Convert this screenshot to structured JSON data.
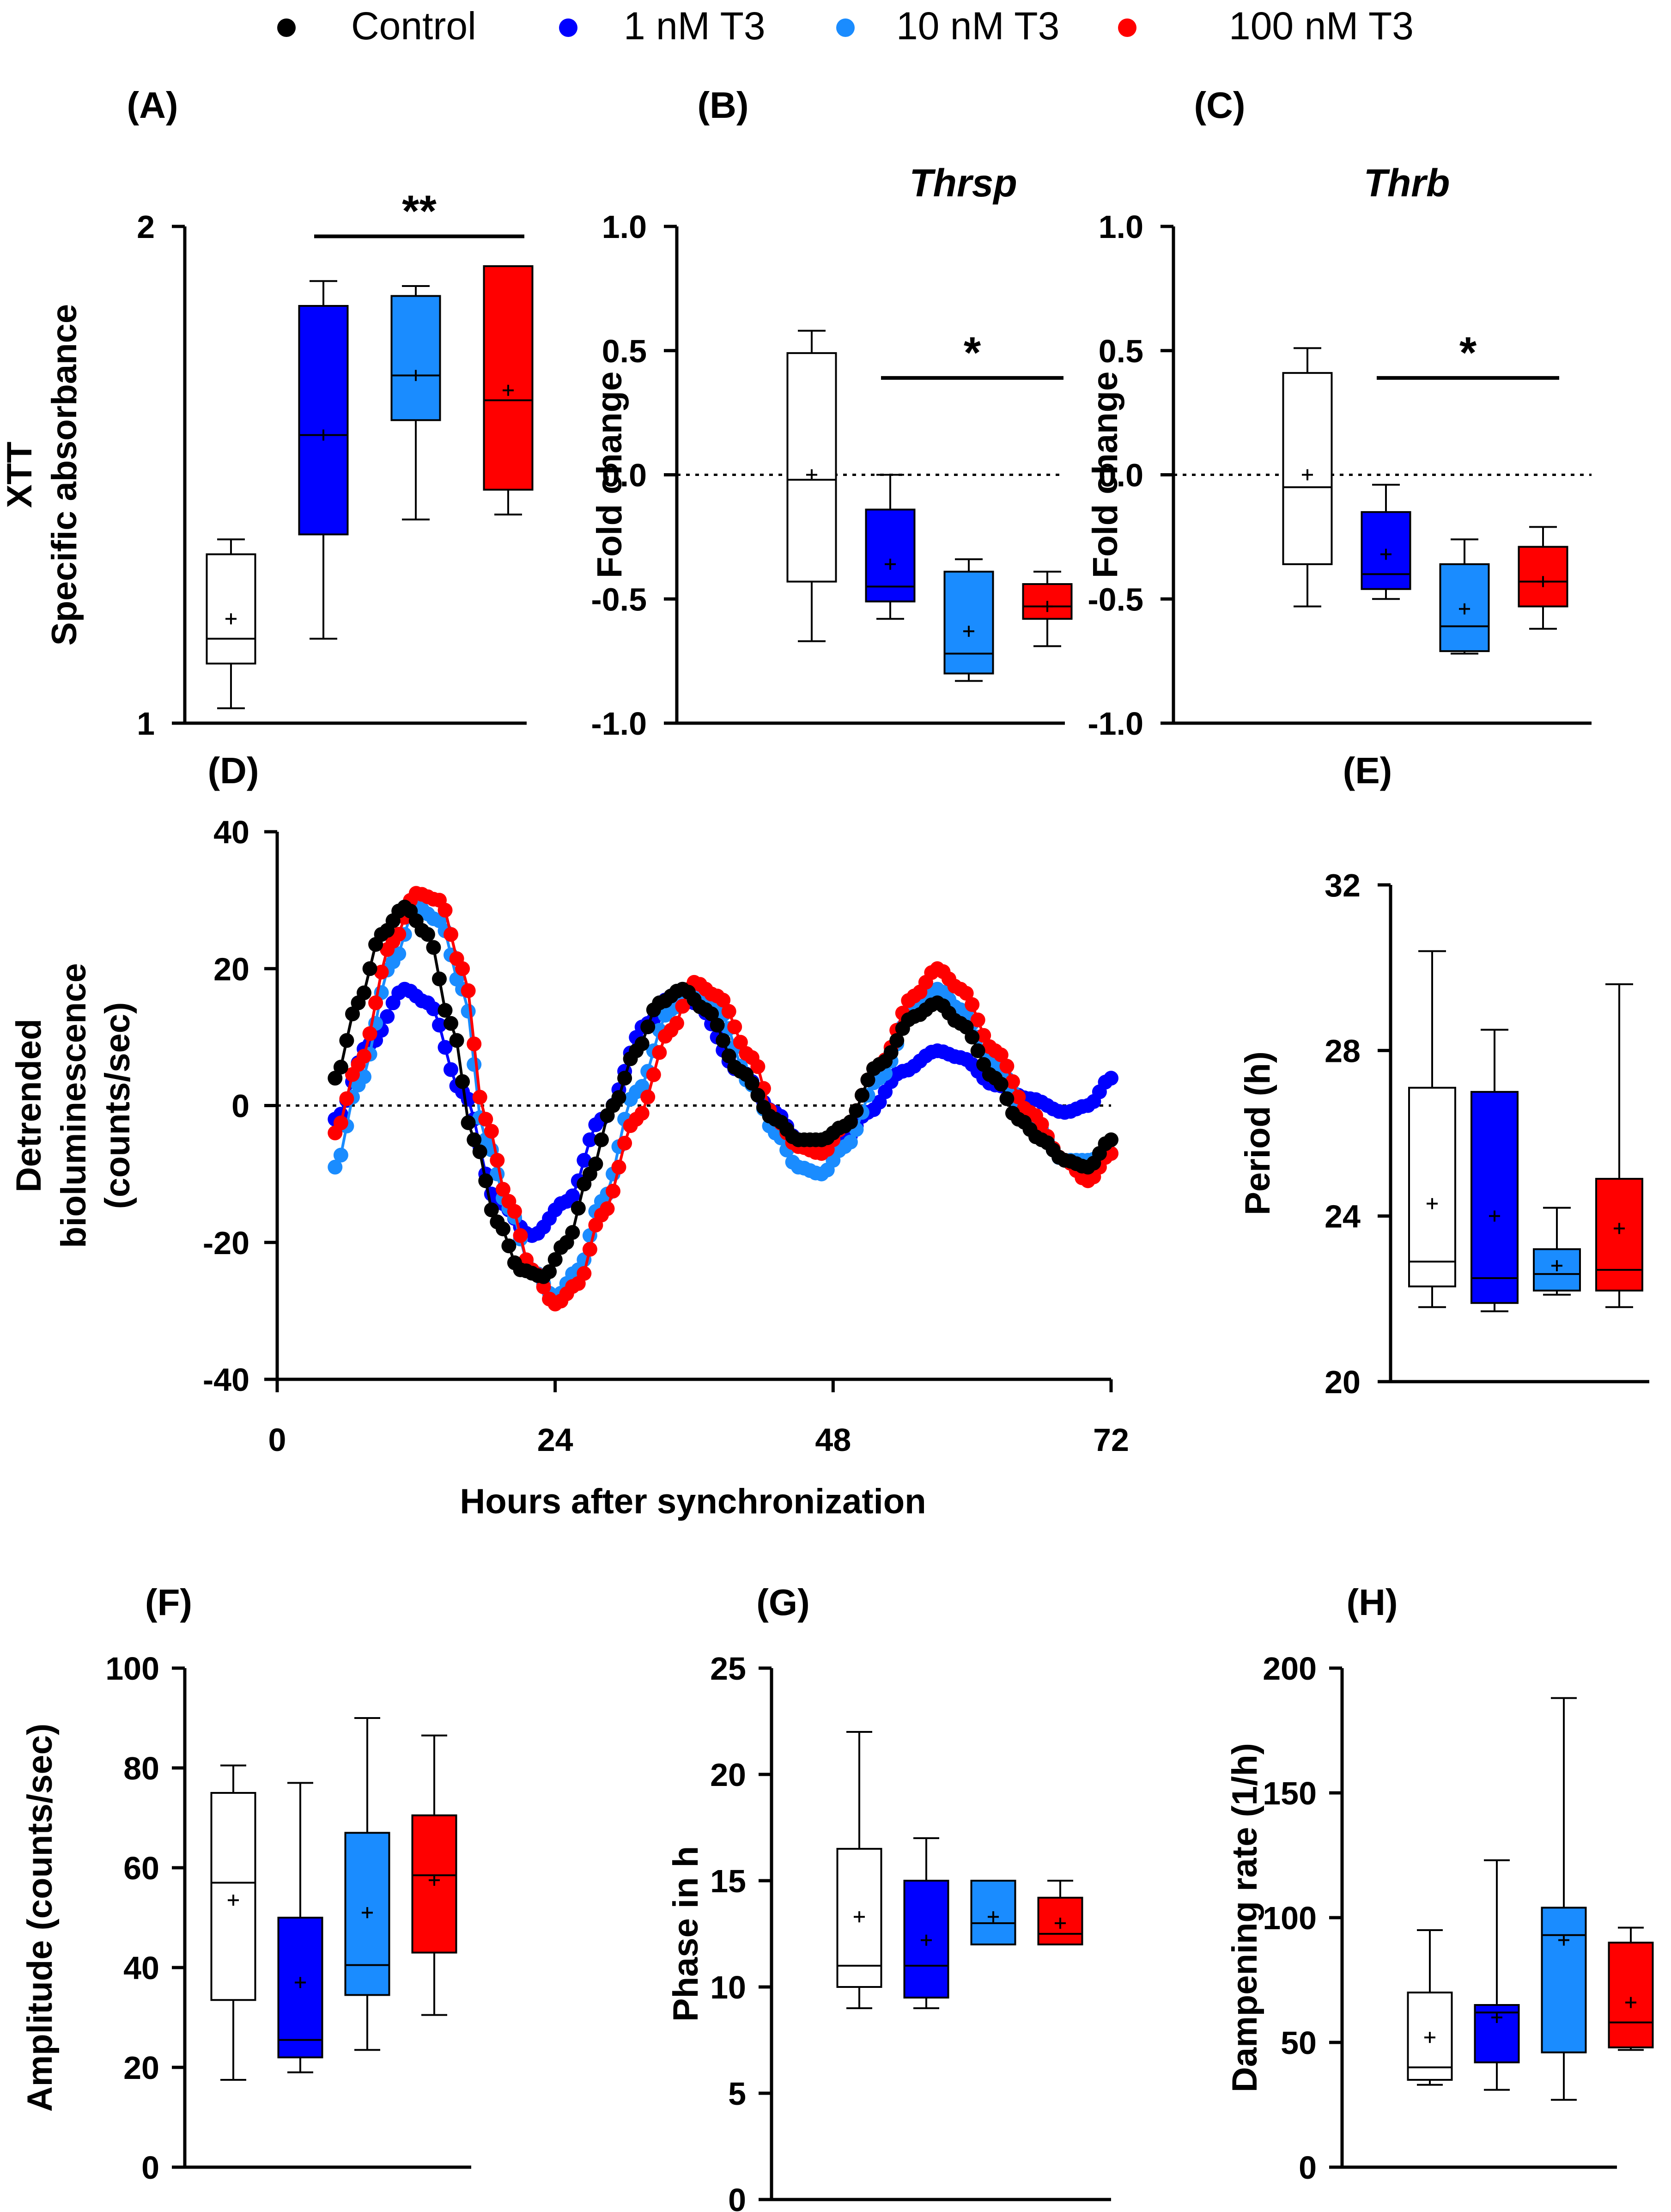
{
  "legend": {
    "items": [
      {
        "label": "Control",
        "color": "#000000"
      },
      {
        "label": "1 nM T3",
        "color": "#0000ff"
      },
      {
        "label": "10 nM T3",
        "color": "#1a8cff"
      },
      {
        "label": "100 nM T3",
        "color": "#ff0000"
      }
    ]
  },
  "chart_data": [
    {
      "id": "A",
      "panel_label": "(A)",
      "type": "box",
      "title": "",
      "ylabel": [
        "XTT",
        "Specific absorbance"
      ],
      "ylim": [
        1,
        2
      ],
      "yticks": [
        1,
        2
      ],
      "ytick_labels": [
        "1",
        "2"
      ],
      "groups": [
        "Control",
        "1 nM T3",
        "10 nM T3",
        "100 nM T3"
      ],
      "boxes": [
        {
          "min": 1.03,
          "q1": 1.12,
          "median": 1.17,
          "q3": 1.34,
          "max": 1.37,
          "mean": 1.21
        },
        {
          "min": 1.17,
          "q1": 1.38,
          "median": 1.58,
          "q3": 1.84,
          "max": 1.89,
          "mean": 1.58
        },
        {
          "min": 1.41,
          "q1": 1.61,
          "median": 1.7,
          "q3": 1.86,
          "max": 1.88,
          "mean": 1.7
        },
        {
          "min": 1.42,
          "q1": 1.47,
          "median": 1.65,
          "q3": 1.92,
          "max": 1.92,
          "mean": 1.67
        }
      ],
      "significance": {
        "label": "**",
        "from": 1,
        "to": 3,
        "y": 1.98
      }
    },
    {
      "id": "B",
      "panel_label": "(B)",
      "type": "box",
      "title": "Thrsp",
      "ylabel": [
        "Fold change"
      ],
      "ylim": [
        -1.0,
        1.0
      ],
      "yticks": [
        -1.0,
        -0.5,
        0.0,
        0.5,
        1.0
      ],
      "ytick_labels": [
        "-1.0",
        "-0.5",
        "0.0",
        "0.5",
        "1.0"
      ],
      "zero_line": true,
      "groups": [
        "Control",
        "1 nM T3",
        "10 nM T3",
        "100 nM T3"
      ],
      "boxes": [
        {
          "min": -0.67,
          "q1": -0.43,
          "median": -0.02,
          "q3": 0.49,
          "max": 0.58,
          "mean": 0.0
        },
        {
          "min": -0.58,
          "q1": -0.51,
          "median": -0.45,
          "q3": -0.14,
          "max": 0.0,
          "mean": -0.36
        },
        {
          "min": -0.83,
          "q1": -0.8,
          "median": -0.72,
          "q3": -0.39,
          "max": -0.34,
          "mean": -0.63
        },
        {
          "min": -0.69,
          "q1": -0.58,
          "median": -0.53,
          "q3": -0.44,
          "max": -0.39,
          "mean": -0.53
        }
      ],
      "significance": {
        "label": "*",
        "from": 1,
        "to": 3,
        "y": 0.39
      }
    },
    {
      "id": "C",
      "panel_label": "(C)",
      "type": "box",
      "title": "Thrb",
      "ylabel": [
        "Fold change"
      ],
      "ylim": [
        -1.0,
        1.0
      ],
      "yticks": [
        -1.0,
        -0.5,
        0.0,
        0.5,
        1.0
      ],
      "ytick_labels": [
        "-1.0",
        "-0.5",
        "0.0",
        "0.5",
        "1.0"
      ],
      "zero_line": true,
      "groups": [
        "Control",
        "1 nM T3",
        "10 nM T3",
        "100 nM T3"
      ],
      "boxes": [
        {
          "min": -0.53,
          "q1": -0.36,
          "median": -0.05,
          "q3": 0.41,
          "max": 0.51,
          "mean": 0.0
        },
        {
          "min": -0.5,
          "q1": -0.46,
          "median": -0.4,
          "q3": -0.15,
          "max": -0.04,
          "mean": -0.32
        },
        {
          "min": -0.72,
          "q1": -0.71,
          "median": -0.61,
          "q3": -0.36,
          "max": -0.26,
          "mean": -0.54
        },
        {
          "min": -0.62,
          "q1": -0.53,
          "median": -0.43,
          "q3": -0.29,
          "max": -0.21,
          "mean": -0.43
        }
      ],
      "significance": {
        "label": "*",
        "from": 1,
        "to": 3,
        "y": 0.39
      }
    },
    {
      "id": "D",
      "panel_label": "(D)",
      "type": "line",
      "title": "",
      "ylabel": [
        "Detrended",
        "bioluminescence",
        "(counts/sec)"
      ],
      "xlabel": "Hours after synchronization",
      "xlim": [
        0,
        72
      ],
      "ylim": [
        -40,
        40
      ],
      "xticks": [
        0,
        24,
        48,
        72
      ],
      "yticks": [
        -40,
        -20,
        0,
        20,
        40
      ],
      "zero_line": true,
      "x_start": 5,
      "x_end": 72,
      "x_step": 0.5,
      "series": [
        {
          "name": "1 nM T3",
          "color": "#0000ff",
          "points": [
            [
              5,
              -2
            ],
            [
              8,
              9
            ],
            [
              11,
              17
            ],
            [
              13,
              15
            ],
            [
              16,
              2
            ],
            [
              19,
              -14
            ],
            [
              22,
              -19
            ],
            [
              25,
              -14
            ],
            [
              28,
              -2
            ],
            [
              32,
              12
            ],
            [
              34,
              16
            ],
            [
              36,
              15
            ],
            [
              40,
              5
            ],
            [
              43,
              -1
            ],
            [
              45,
              -5
            ],
            [
              47,
              -6
            ],
            [
              49,
              -5
            ],
            [
              51,
              -1
            ],
            [
              54,
              5
            ],
            [
              57,
              8
            ],
            [
              59,
              7
            ],
            [
              62,
              3
            ],
            [
              65,
              1
            ],
            [
              68,
              -1
            ],
            [
              70,
              0
            ],
            [
              72,
              4
            ]
          ]
        },
        {
          "name": "10 nM T3",
          "color": "#1a8cff",
          "points": [
            [
              5,
              -9
            ],
            [
              7,
              3
            ],
            [
              10,
              21
            ],
            [
              12,
              29
            ],
            [
              14,
              27
            ],
            [
              16,
              17
            ],
            [
              18,
              -5
            ],
            [
              20,
              -15
            ],
            [
              22,
              -24
            ],
            [
              24,
              -28
            ],
            [
              26,
              -24
            ],
            [
              28,
              -14
            ],
            [
              31,
              2
            ],
            [
              34,
              14
            ],
            [
              36,
              17
            ],
            [
              38,
              14
            ],
            [
              41,
              3
            ],
            [
              43,
              -4
            ],
            [
              45,
              -9
            ],
            [
              47,
              -10
            ],
            [
              49,
              -6
            ],
            [
              52,
              4
            ],
            [
              55,
              14
            ],
            [
              57,
              17
            ],
            [
              59,
              14
            ],
            [
              62,
              6
            ],
            [
              65,
              -2
            ],
            [
              68,
              -8
            ],
            [
              70,
              -8
            ],
            [
              72,
              -7
            ]
          ]
        },
        {
          "name": "100 nM T3",
          "color": "#ff0000",
          "points": [
            [
              5,
              -4
            ],
            [
              7,
              6
            ],
            [
              10,
              24
            ],
            [
              12,
              31
            ],
            [
              14,
              30
            ],
            [
              16,
              20
            ],
            [
              18,
              -2
            ],
            [
              20,
              -14
            ],
            [
              22,
              -24
            ],
            [
              24,
              -29
            ],
            [
              26,
              -26
            ],
            [
              28,
              -16
            ],
            [
              31,
              -2
            ],
            [
              34,
              11
            ],
            [
              36,
              18
            ],
            [
              38,
              16
            ],
            [
              41,
              7
            ],
            [
              43,
              -2
            ],
            [
              45,
              -6
            ],
            [
              47,
              -7
            ],
            [
              49,
              -3
            ],
            [
              52,
              6
            ],
            [
              55,
              16
            ],
            [
              57,
              20
            ],
            [
              59,
              17
            ],
            [
              62,
              8
            ],
            [
              65,
              -1
            ],
            [
              68,
              -8
            ],
            [
              70,
              -11
            ],
            [
              72,
              -7
            ]
          ]
        },
        {
          "name": "Control",
          "color": "#000000",
          "points": [
            [
              5,
              4
            ],
            [
              7,
              15
            ],
            [
              9,
              25
            ],
            [
              11,
              29
            ],
            [
              13,
              25
            ],
            [
              15,
              12
            ],
            [
              17,
              -5
            ],
            [
              19,
              -17
            ],
            [
              21,
              -24
            ],
            [
              23,
              -25
            ],
            [
              25,
              -20
            ],
            [
              27,
              -10
            ],
            [
              29,
              0
            ],
            [
              31,
              8
            ],
            [
              33,
              15
            ],
            [
              35,
              17
            ],
            [
              37,
              14
            ],
            [
              40,
              5
            ],
            [
              43,
              -2
            ],
            [
              45,
              -5
            ],
            [
              47,
              -5
            ],
            [
              49,
              -3
            ],
            [
              52,
              6
            ],
            [
              55,
              13
            ],
            [
              57,
              15
            ],
            [
              59,
              12
            ],
            [
              62,
              4
            ],
            [
              64,
              -2
            ],
            [
              66,
              -5
            ],
            [
              68,
              -8
            ],
            [
              70,
              -9
            ],
            [
              72,
              -5
            ]
          ]
        }
      ]
    },
    {
      "id": "E",
      "panel_label": "(E)",
      "type": "box",
      "title": "",
      "ylabel": [
        "Period (h)"
      ],
      "ylim": [
        20,
        32
      ],
      "yticks": [
        20,
        24,
        28,
        32
      ],
      "ytick_labels": [
        "20",
        "24",
        "28",
        "32"
      ],
      "groups": [
        "Control",
        "1 nM T3",
        "10 nM T3",
        "100 nM T3"
      ],
      "boxes": [
        {
          "min": 21.8,
          "q1": 22.3,
          "median": 22.9,
          "q3": 27.1,
          "max": 30.4,
          "mean": 24.3
        },
        {
          "min": 21.7,
          "q1": 21.9,
          "median": 22.5,
          "q3": 27.0,
          "max": 28.5,
          "mean": 24.0
        },
        {
          "min": 22.1,
          "q1": 22.2,
          "median": 22.6,
          "q3": 23.2,
          "max": 24.2,
          "mean": 22.8
        },
        {
          "min": 21.8,
          "q1": 22.2,
          "median": 22.7,
          "q3": 24.9,
          "max": 29.6,
          "mean": 23.7
        }
      ]
    },
    {
      "id": "F",
      "panel_label": "(F)",
      "type": "box",
      "title": "",
      "ylabel": [
        "Amplitude (counts/sec)"
      ],
      "ylim": [
        0,
        100
      ],
      "yticks": [
        0,
        20,
        40,
        60,
        80,
        100
      ],
      "ytick_labels": [
        "0",
        "20",
        "40",
        "60",
        "80",
        "100"
      ],
      "groups": [
        "Control",
        "1 nM T3",
        "10 nM T3",
        "100 nM T3"
      ],
      "boxes": [
        {
          "min": 17.5,
          "q1": 33.5,
          "median": 57.0,
          "q3": 75.0,
          "max": 80.5,
          "mean": 53.5
        },
        {
          "min": 19.0,
          "q1": 22.0,
          "median": 25.5,
          "q3": 50.0,
          "max": 77.0,
          "mean": 37.0
        },
        {
          "min": 23.5,
          "q1": 34.5,
          "median": 40.5,
          "q3": 67.0,
          "max": 90.0,
          "mean": 51.0
        },
        {
          "min": 30.5,
          "q1": 43.0,
          "median": 58.5,
          "q3": 70.5,
          "max": 86.5,
          "mean": 57.5
        }
      ]
    },
    {
      "id": "G",
      "panel_label": "(G)",
      "type": "box",
      "title": "",
      "ylabel": [
        "Phase in h"
      ],
      "ylim": [
        0,
        25
      ],
      "yticks": [
        0,
        5,
        10,
        15,
        20,
        25
      ],
      "ytick_labels": [
        "0",
        "5",
        "10",
        "15",
        "20",
        "25"
      ],
      "groups": [
        "Control",
        "1 nM T3",
        "10 nM T3",
        "100 nM T3"
      ],
      "boxes": [
        {
          "min": 9.0,
          "q1": 10.0,
          "median": 11.0,
          "q3": 16.5,
          "max": 22.0,
          "mean": 13.3
        },
        {
          "min": 9.0,
          "q1": 9.5,
          "median": 11.0,
          "q3": 15.0,
          "max": 17.0,
          "mean": 12.2
        },
        {
          "min": 12.0,
          "q1": 12.0,
          "median": 13.0,
          "q3": 15.0,
          "max": 15.0,
          "mean": 13.3
        },
        {
          "min": 12.0,
          "q1": 12.0,
          "median": 12.5,
          "q3": 14.2,
          "max": 15.0,
          "mean": 13.0
        }
      ]
    },
    {
      "id": "H",
      "panel_label": "(H)",
      "type": "box",
      "title": "",
      "ylabel": [
        "Dampening rate (1/h)"
      ],
      "ylim": [
        0,
        200
      ],
      "yticks": [
        0,
        50,
        100,
        150,
        200
      ],
      "ytick_labels": [
        "0",
        "50",
        "100",
        "150",
        "200"
      ],
      "groups": [
        "Control",
        "1 nM T3",
        "10 nM T3",
        "100 nM T3"
      ],
      "boxes": [
        {
          "min": 33,
          "q1": 35,
          "median": 40,
          "q3": 70,
          "max": 95,
          "mean": 52
        },
        {
          "min": 31,
          "q1": 42,
          "median": 62,
          "q3": 65,
          "max": 123,
          "mean": 60
        },
        {
          "min": 27,
          "q1": 46,
          "median": 93,
          "q3": 104,
          "max": 188,
          "mean": 91
        },
        {
          "min": 47,
          "q1": 48,
          "median": 58,
          "q3": 90,
          "max": 96,
          "mean": 66
        }
      ]
    }
  ]
}
